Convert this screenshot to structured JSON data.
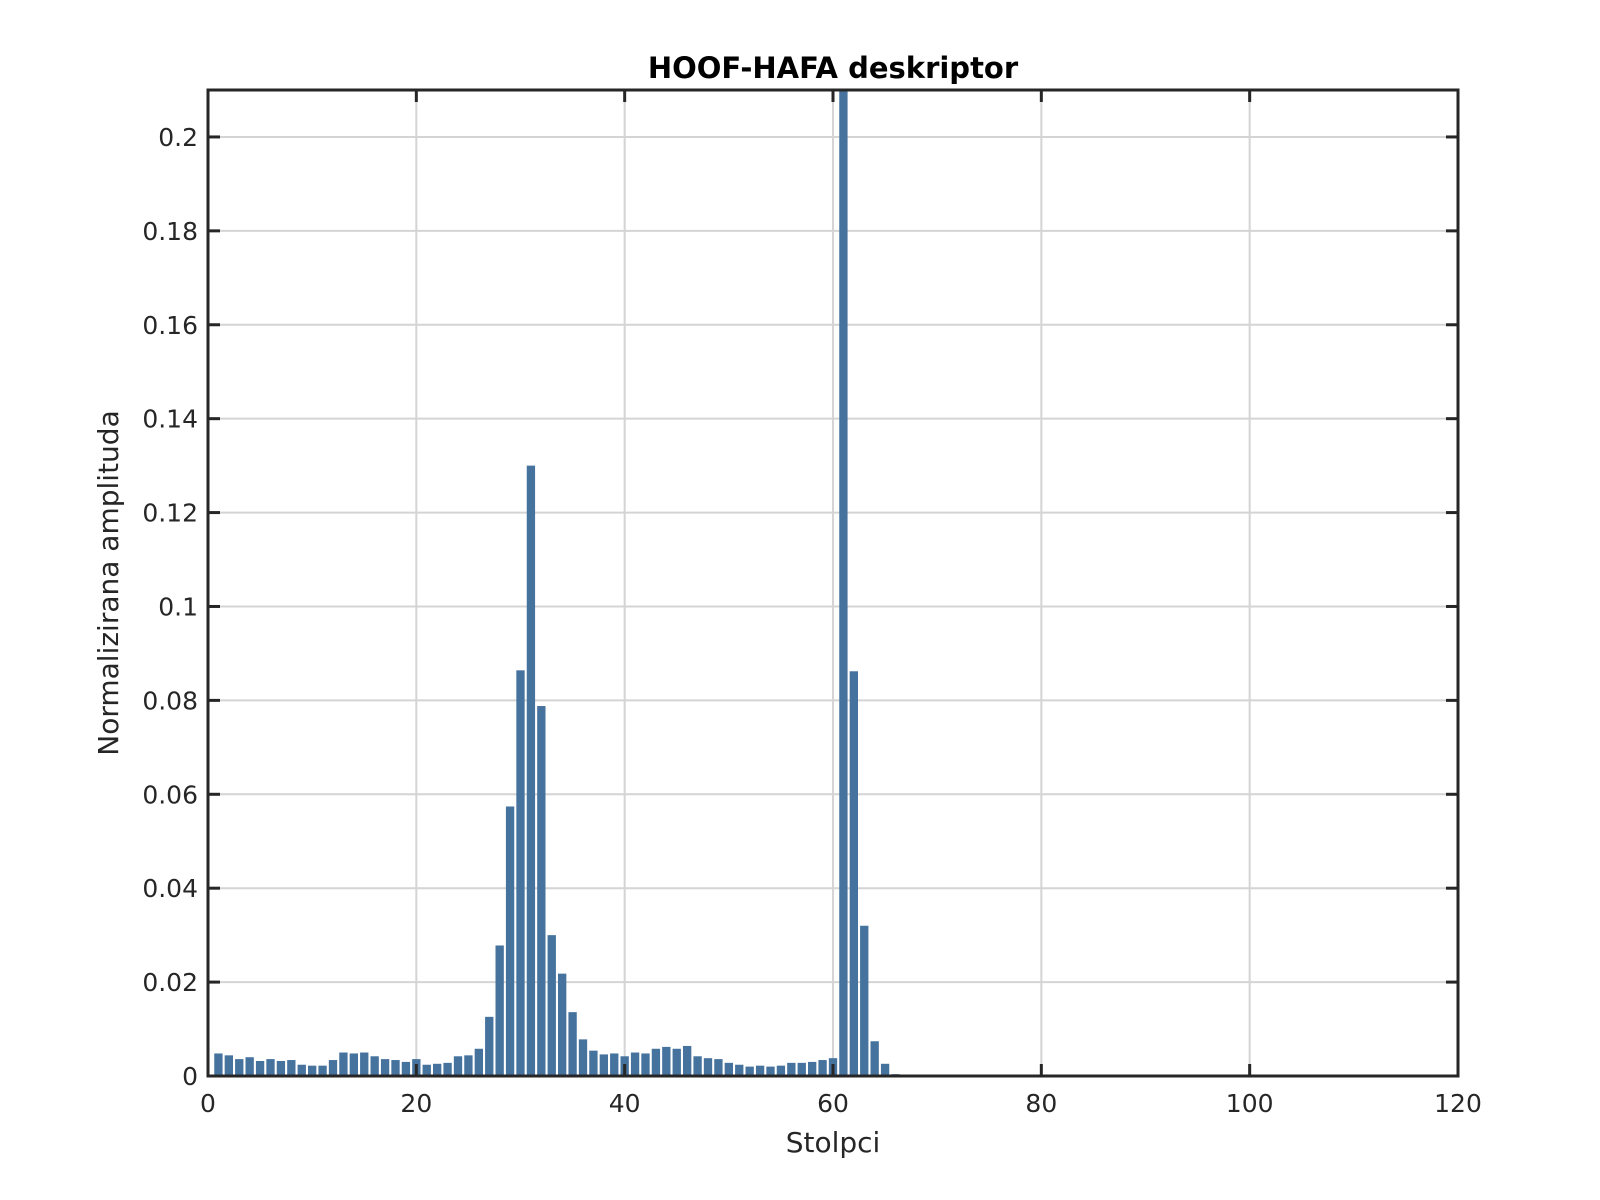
{
  "chart_data": {
    "type": "bar",
    "title": "HOOF-HAFA deskriptor",
    "xlabel": "Stolpci",
    "ylabel": "Normalizirana amplituda",
    "xlim": [
      0,
      120
    ],
    "ylim": [
      0,
      0.21
    ],
    "x_ticks": [
      0,
      20,
      40,
      60,
      80,
      100,
      120
    ],
    "x_tick_labels": [
      "0",
      "20",
      "40",
      "60",
      "80",
      "100",
      "120"
    ],
    "y_ticks": [
      0,
      0.02,
      0.04,
      0.06,
      0.08,
      0.1,
      0.12,
      0.14,
      0.16,
      0.18,
      0.2
    ],
    "y_tick_labels": [
      "0",
      "0.02",
      "0.04",
      "0.06",
      "0.08",
      "0.1",
      "0.12",
      "0.14",
      "0.16",
      "0.18",
      "0.2"
    ],
    "grid": true,
    "bar_color": "#46739e",
    "x": [
      1,
      2,
      3,
      4,
      5,
      6,
      7,
      8,
      9,
      10,
      11,
      12,
      13,
      14,
      15,
      16,
      17,
      18,
      19,
      20,
      21,
      22,
      23,
      24,
      25,
      26,
      27,
      28,
      29,
      30,
      31,
      32,
      33,
      34,
      35,
      36,
      37,
      38,
      39,
      40,
      41,
      42,
      43,
      44,
      45,
      46,
      47,
      48,
      49,
      50,
      51,
      52,
      53,
      54,
      55,
      56,
      57,
      58,
      59,
      60,
      61,
      62,
      63,
      64,
      65,
      66,
      67,
      68,
      69,
      70,
      71,
      72,
      73,
      74,
      75,
      76,
      77,
      78,
      79,
      80,
      81,
      82,
      83,
      84,
      85,
      86,
      87,
      88,
      89,
      90,
      91,
      92,
      93,
      94,
      95,
      96,
      97,
      98,
      99,
      100,
      101,
      102,
      103,
      104,
      105,
      106,
      107,
      108,
      109,
      110,
      111,
      112,
      113,
      114,
      115,
      116,
      117,
      118,
      119,
      120
    ],
    "values": [
      0.0048,
      0.0044,
      0.0036,
      0.004,
      0.0032,
      0.0036,
      0.0032,
      0.0034,
      0.0024,
      0.0022,
      0.0022,
      0.0034,
      0.005,
      0.0048,
      0.005,
      0.0042,
      0.0036,
      0.0034,
      0.003,
      0.0036,
      0.0024,
      0.0026,
      0.0028,
      0.0042,
      0.0044,
      0.0058,
      0.0126,
      0.0278,
      0.0574,
      0.0864,
      0.13,
      0.0788,
      0.03,
      0.0218,
      0.0136,
      0.0078,
      0.0054,
      0.0046,
      0.0048,
      0.0042,
      0.005,
      0.0048,
      0.0058,
      0.0062,
      0.0058,
      0.0064,
      0.0042,
      0.0038,
      0.0036,
      0.0028,
      0.0024,
      0.002,
      0.0022,
      0.002,
      0.0022,
      0.0028,
      0.0028,
      0.003,
      0.0034,
      0.0038,
      0.21,
      0.0862,
      0.032,
      0.0074,
      0.0026,
      0.0004,
      0,
      0,
      0,
      0,
      0,
      0,
      0,
      0,
      0,
      0,
      0,
      0,
      0,
      0,
      0,
      0,
      0,
      0,
      0,
      0,
      0,
      0,
      0,
      0,
      0,
      0,
      0,
      0,
      0,
      0,
      0,
      0,
      0,
      0,
      0,
      0,
      0,
      0,
      0,
      0,
      0,
      0,
      0,
      0,
      0,
      0,
      0,
      0,
      0,
      0,
      0,
      0,
      0,
      0
    ]
  }
}
